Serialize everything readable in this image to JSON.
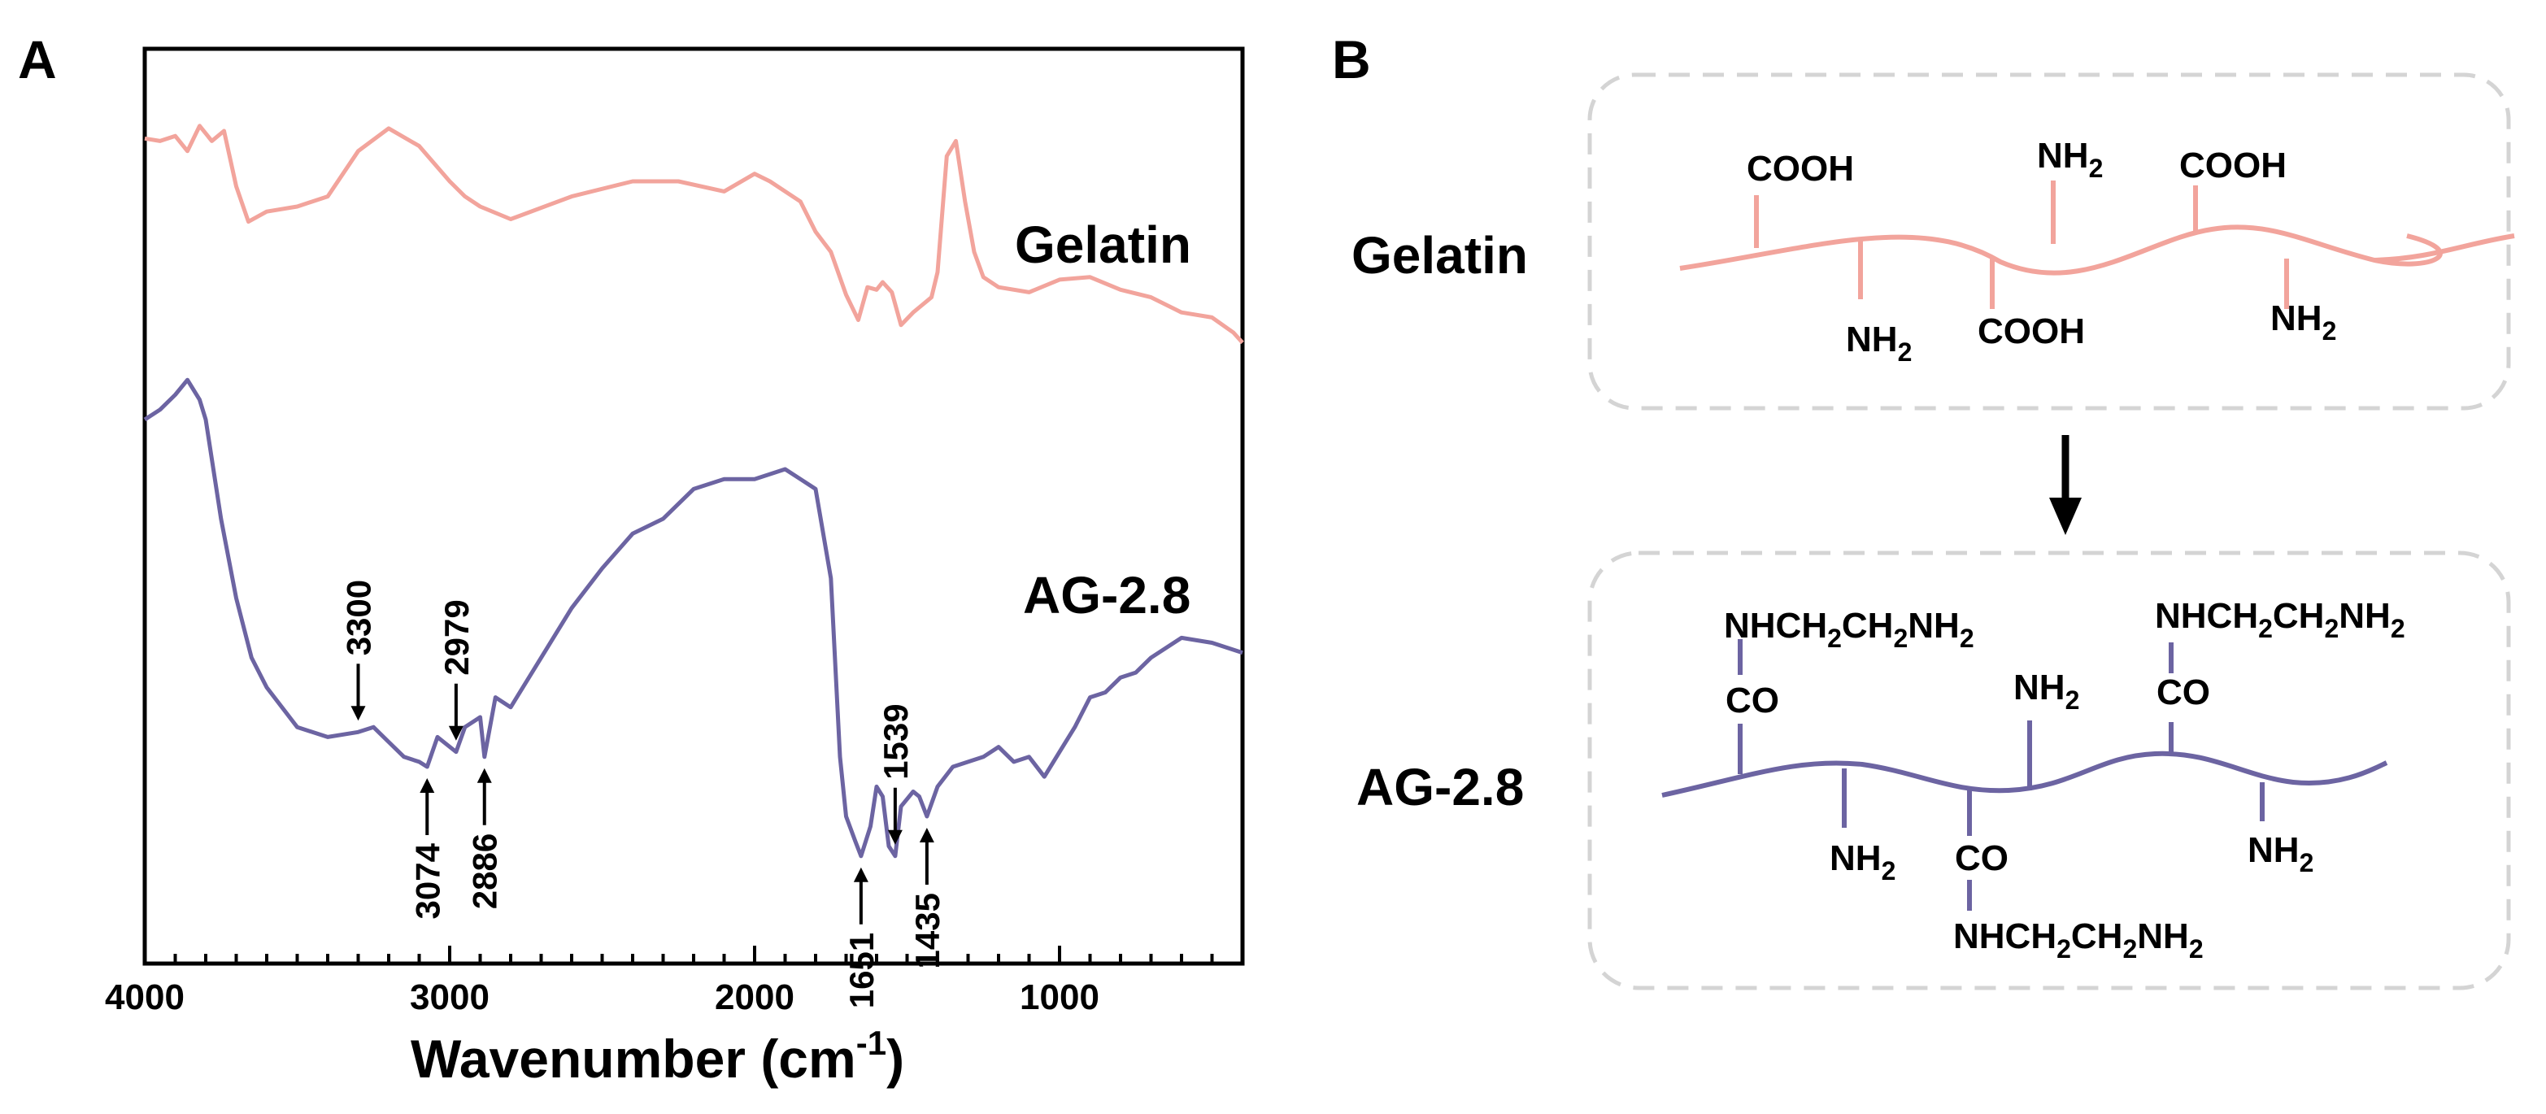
{
  "panel_a_label": "A",
  "panel_b_label": "B",
  "chart_data": {
    "type": "line",
    "title": "",
    "xlabel": "Wavenumber (cm",
    "xlabel_sup": "-1",
    "xlabel_close": ")",
    "ylabel": "",
    "xlim": [
      4000,
      400
    ],
    "x_reversed": true,
    "x_ticks": [
      4000,
      3000,
      2000,
      1000
    ],
    "x_tick_labels": [
      "4000",
      "3000",
      "2000",
      "1000"
    ],
    "grid": false,
    "series": [
      {
        "name": "Gelatin",
        "color": "#f2a49c",
        "offset": 0.72,
        "values": [
          [
            4000,
            0.13
          ],
          [
            3950,
            0.14
          ],
          [
            3900,
            0.12
          ],
          [
            3860,
            0.18
          ],
          [
            3820,
            0.08
          ],
          [
            3780,
            0.14
          ],
          [
            3740,
            0.1
          ],
          [
            3700,
            0.32
          ],
          [
            3660,
            0.46
          ],
          [
            3600,
            0.42
          ],
          [
            3500,
            0.4
          ],
          [
            3400,
            0.36
          ],
          [
            3300,
            0.18
          ],
          [
            3200,
            0.09
          ],
          [
            3100,
            0.16
          ],
          [
            3000,
            0.3
          ],
          [
            2950,
            0.36
          ],
          [
            2900,
            0.4
          ],
          [
            2800,
            0.45
          ],
          [
            2600,
            0.36
          ],
          [
            2400,
            0.3
          ],
          [
            2250,
            0.3
          ],
          [
            2100,
            0.34
          ],
          [
            2000,
            0.27
          ],
          [
            1950,
            0.3
          ],
          [
            1850,
            0.38
          ],
          [
            1800,
            0.5
          ],
          [
            1750,
            0.58
          ],
          [
            1700,
            0.75
          ],
          [
            1660,
            0.85
          ],
          [
            1630,
            0.72
          ],
          [
            1600,
            0.73
          ],
          [
            1580,
            0.7
          ],
          [
            1550,
            0.74
          ],
          [
            1520,
            0.87
          ],
          [
            1480,
            0.82
          ],
          [
            1460,
            0.8
          ],
          [
            1420,
            0.76
          ],
          [
            1400,
            0.66
          ],
          [
            1370,
            0.2
          ],
          [
            1340,
            0.14
          ],
          [
            1310,
            0.38
          ],
          [
            1280,
            0.58
          ],
          [
            1250,
            0.68
          ],
          [
            1200,
            0.72
          ],
          [
            1100,
            0.74
          ],
          [
            1000,
            0.69
          ],
          [
            900,
            0.68
          ],
          [
            800,
            0.73
          ],
          [
            700,
            0.76
          ],
          [
            600,
            0.82
          ],
          [
            500,
            0.84
          ],
          [
            430,
            0.9
          ],
          [
            400,
            0.94
          ]
        ]
      },
      {
        "name": "AG-2.8",
        "color": "#6c64a2",
        "offset": 0.0,
        "values": [
          [
            4000,
            0.1
          ],
          [
            3950,
            0.08
          ],
          [
            3900,
            0.05
          ],
          [
            3860,
            0.02
          ],
          [
            3820,
            0.06
          ],
          [
            3800,
            0.1
          ],
          [
            3750,
            0.3
          ],
          [
            3700,
            0.46
          ],
          [
            3650,
            0.58
          ],
          [
            3600,
            0.64
          ],
          [
            3500,
            0.72
          ],
          [
            3400,
            0.74
          ],
          [
            3300,
            0.73
          ],
          [
            3250,
            0.72
          ],
          [
            3200,
            0.75
          ],
          [
            3150,
            0.78
          ],
          [
            3100,
            0.79
          ],
          [
            3074,
            0.8
          ],
          [
            3040,
            0.74
          ],
          [
            2979,
            0.77
          ],
          [
            2950,
            0.72
          ],
          [
            2900,
            0.7
          ],
          [
            2886,
            0.78
          ],
          [
            2850,
            0.66
          ],
          [
            2800,
            0.68
          ],
          [
            2700,
            0.58
          ],
          [
            2600,
            0.48
          ],
          [
            2500,
            0.4
          ],
          [
            2400,
            0.33
          ],
          [
            2300,
            0.3
          ],
          [
            2200,
            0.24
          ],
          [
            2100,
            0.22
          ],
          [
            2000,
            0.22
          ],
          [
            1950,
            0.21
          ],
          [
            1900,
            0.2
          ],
          [
            1850,
            0.22
          ],
          [
            1800,
            0.24
          ],
          [
            1750,
            0.42
          ],
          [
            1720,
            0.78
          ],
          [
            1700,
            0.9
          ],
          [
            1670,
            0.95
          ],
          [
            1651,
            0.98
          ],
          [
            1620,
            0.92
          ],
          [
            1600,
            0.84
          ],
          [
            1580,
            0.86
          ],
          [
            1560,
            0.96
          ],
          [
            1539,
            0.98
          ],
          [
            1520,
            0.88
          ],
          [
            1480,
            0.85
          ],
          [
            1460,
            0.86
          ],
          [
            1435,
            0.9
          ],
          [
            1400,
            0.84
          ],
          [
            1350,
            0.8
          ],
          [
            1300,
            0.79
          ],
          [
            1250,
            0.78
          ],
          [
            1200,
            0.76
          ],
          [
            1150,
            0.79
          ],
          [
            1100,
            0.78
          ],
          [
            1050,
            0.82
          ],
          [
            1000,
            0.77
          ],
          [
            950,
            0.72
          ],
          [
            900,
            0.66
          ],
          [
            850,
            0.65
          ],
          [
            800,
            0.62
          ],
          [
            750,
            0.61
          ],
          [
            700,
            0.58
          ],
          [
            600,
            0.54
          ],
          [
            500,
            0.55
          ],
          [
            450,
            0.56
          ],
          [
            400,
            0.57
          ]
        ]
      }
    ],
    "series_labels": [
      "Gelatin",
      "AG-2.8"
    ],
    "annotations": [
      {
        "label": "3300",
        "x": 3300,
        "direction": "down"
      },
      {
        "label": "2979",
        "x": 2979,
        "direction": "down"
      },
      {
        "label": "3074",
        "x": 3074,
        "direction": "up"
      },
      {
        "label": "2886",
        "x": 2886,
        "direction": "up"
      },
      {
        "label": "1539",
        "x": 1539,
        "direction": "down"
      },
      {
        "label": "1651",
        "x": 1651,
        "direction": "up"
      },
      {
        "label": "1435",
        "x": 1435,
        "direction": "up"
      }
    ]
  },
  "schematic": {
    "gelatin": {
      "label": "Gelatin",
      "color": "#f2a49c",
      "groups": {
        "cooh": "COOH",
        "nh2_n": "NH",
        "nh2_sub": "2"
      }
    },
    "ag": {
      "label": "AG-2.8",
      "color": "#6c64a2",
      "groups": {
        "co": "CO",
        "nh2_n": "NH",
        "nh2_sub": "2",
        "amine_a": "NHCH",
        "amine_b": "CH",
        "amine_c": "NH",
        "sub": "2"
      }
    }
  }
}
